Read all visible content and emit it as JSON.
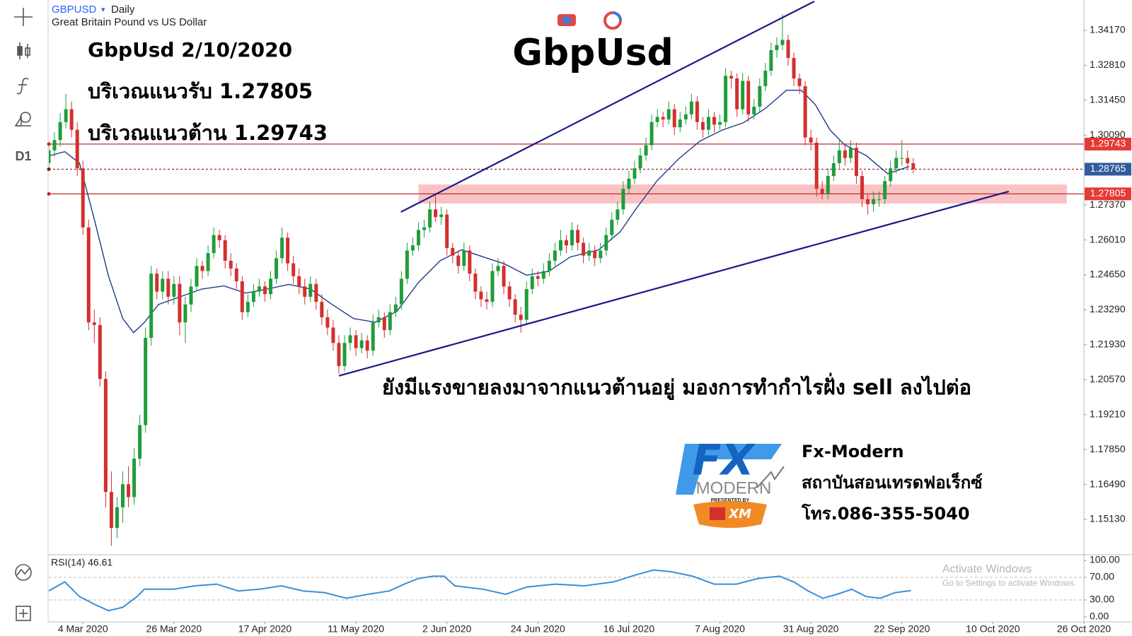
{
  "header": {
    "symbol": "GBPUSD",
    "timeframe": "Daily",
    "description": "Great Britain Pound vs US Dollar",
    "toolbar_timeframe": "D1"
  },
  "chart_data": {
    "type": "candlestick",
    "title": "GbpUsd",
    "annotations": [
      "GbpUsd 2/10/2020",
      "บริเวณแนวรับ 1.27805",
      "บริเวณแนวต้าน 1.29743",
      "ยังมีแรงขายลงมาจากแนวต้านอยู่ มองการทำกำไรฝั่ง sell ลงไปต่อ"
    ],
    "xlim": [
      0,
      182
    ],
    "xticks": [
      {
        "value": 6,
        "label": "4 Mar 2020"
      },
      {
        "value": 22,
        "label": "26 Mar 2020"
      },
      {
        "value": 38,
        "label": "17 Apr 2020"
      },
      {
        "value": 54,
        "label": "11 May 2020"
      },
      {
        "value": 70,
        "label": "2 Jun 2020"
      },
      {
        "value": 86,
        "label": "24 Jun 2020"
      },
      {
        "value": 102,
        "label": "16 Jul 2020"
      },
      {
        "value": 118,
        "label": "7 Aug 2020"
      },
      {
        "value": 134,
        "label": "31 Aug 2020"
      },
      {
        "value": 150,
        "label": "22 Sep 2020"
      },
      {
        "value": 166,
        "label": "10 Oct 2020"
      },
      {
        "value": 182,
        "label": "26 Oct 2020"
      }
    ],
    "ylim": [
      1.13755,
      1.35353
    ],
    "yticks": [
      {
        "value": 1.3417,
        "label": "1.34170"
      },
      {
        "value": 1.3281,
        "label": "1.32810"
      },
      {
        "value": 1.3145,
        "label": "1.31450"
      },
      {
        "value": 1.3009,
        "label": "1.30090"
      },
      {
        "value": 1.2737,
        "label": "1.27370"
      },
      {
        "value": 1.2601,
        "label": "1.26010"
      },
      {
        "value": 1.2465,
        "label": "1.24650"
      },
      {
        "value": 1.2329,
        "label": "1.23290"
      },
      {
        "value": 1.2193,
        "label": "1.21930"
      },
      {
        "value": 1.2057,
        "label": "1.20570"
      },
      {
        "value": 1.1921,
        "label": "1.19210"
      },
      {
        "value": 1.1785,
        "label": "1.17850"
      },
      {
        "value": 1.1649,
        "label": "1.16490"
      },
      {
        "value": 1.1513,
        "label": "1.15130"
      }
    ],
    "up_color": "#1f9d3a",
    "down_color": "#d32f2f",
    "candles": [
      [
        1.29,
        1.2985,
        1.287,
        1.295
      ],
      [
        1.295,
        1.302,
        1.2925,
        1.299
      ],
      [
        1.299,
        1.3095,
        1.2965,
        1.306
      ],
      [
        1.306,
        1.317,
        1.3035,
        1.311
      ],
      [
        1.311,
        1.314,
        1.3,
        1.303
      ],
      [
        1.303,
        1.306,
        1.285,
        1.288
      ],
      [
        1.288,
        1.291,
        1.262,
        1.265
      ],
      [
        1.265,
        1.268,
        1.225,
        1.228
      ],
      [
        1.228,
        1.233,
        1.22,
        1.227
      ],
      [
        1.227,
        1.23,
        1.203,
        1.206
      ],
      [
        1.206,
        1.209,
        1.156,
        1.162
      ],
      [
        1.162,
        1.17,
        1.141,
        1.148
      ],
      [
        1.148,
        1.16,
        1.144,
        1.156
      ],
      [
        1.156,
        1.17,
        1.15,
        1.165
      ],
      [
        1.165,
        1.172,
        1.156,
        1.16
      ],
      [
        1.16,
        1.179,
        1.157,
        1.175
      ],
      [
        1.175,
        1.192,
        1.172,
        1.188
      ],
      [
        1.188,
        1.226,
        1.185,
        1.222
      ],
      [
        1.222,
        1.25,
        1.219,
        1.247
      ],
      [
        1.247,
        1.249,
        1.237,
        1.24
      ],
      [
        1.24,
        1.248,
        1.237,
        1.245
      ],
      [
        1.245,
        1.248,
        1.235,
        1.238
      ],
      [
        1.238,
        1.246,
        1.235,
        1.243
      ],
      [
        1.243,
        1.246,
        1.223,
        1.228
      ],
      [
        1.228,
        1.238,
        1.22,
        1.235
      ],
      [
        1.235,
        1.245,
        1.232,
        1.242
      ],
      [
        1.242,
        1.253,
        1.24,
        1.25
      ],
      [
        1.25,
        1.252,
        1.245,
        1.248
      ],
      [
        1.248,
        1.258,
        1.246,
        1.255
      ],
      [
        1.255,
        1.265,
        1.253,
        1.262
      ],
      [
        1.262,
        1.264,
        1.257,
        1.26
      ],
      [
        1.26,
        1.262,
        1.249,
        1.252
      ],
      [
        1.252,
        1.255,
        1.246,
        1.249
      ],
      [
        1.249,
        1.251,
        1.241,
        1.244
      ],
      [
        1.244,
        1.246,
        1.229,
        1.232
      ],
      [
        1.232,
        1.239,
        1.23,
        1.236
      ],
      [
        1.236,
        1.243,
        1.234,
        1.24
      ],
      [
        1.24,
        1.245,
        1.238,
        1.242
      ],
      [
        1.242,
        1.244,
        1.236,
        1.239
      ],
      [
        1.239,
        1.248,
        1.237,
        1.245
      ],
      [
        1.245,
        1.256,
        1.243,
        1.253
      ],
      [
        1.253,
        1.265,
        1.251,
        1.261
      ],
      [
        1.261,
        1.263,
        1.248,
        1.251
      ],
      [
        1.251,
        1.254,
        1.243,
        1.246
      ],
      [
        1.246,
        1.249,
        1.239,
        1.242
      ],
      [
        1.242,
        1.245,
        1.235,
        1.238
      ],
      [
        1.238,
        1.246,
        1.236,
        1.243
      ],
      [
        1.243,
        1.245,
        1.233,
        1.236
      ],
      [
        1.236,
        1.239,
        1.227,
        1.23
      ],
      [
        1.23,
        1.233,
        1.223,
        1.226
      ],
      [
        1.226,
        1.229,
        1.217,
        1.22
      ],
      [
        1.22,
        1.223,
        1.208,
        1.211
      ],
      [
        1.211,
        1.223,
        1.209,
        1.22
      ],
      [
        1.22,
        1.226,
        1.217,
        1.223
      ],
      [
        1.223,
        1.225,
        1.215,
        1.218
      ],
      [
        1.218,
        1.224,
        1.216,
        1.221
      ],
      [
        1.221,
        1.223,
        1.214,
        1.217
      ],
      [
        1.217,
        1.231,
        1.215,
        1.228
      ],
      [
        1.228,
        1.233,
        1.226,
        1.23
      ],
      [
        1.23,
        1.232,
        1.222,
        1.225
      ],
      [
        1.225,
        1.235,
        1.223,
        1.232
      ],
      [
        1.232,
        1.238,
        1.23,
        1.235
      ],
      [
        1.235,
        1.248,
        1.233,
        1.245
      ],
      [
        1.245,
        1.259,
        1.243,
        1.256
      ],
      [
        1.256,
        1.261,
        1.254,
        1.258
      ],
      [
        1.258,
        1.267,
        1.256,
        1.264
      ],
      [
        1.264,
        1.268,
        1.261,
        1.265
      ],
      [
        1.265,
        1.275,
        1.263,
        1.272
      ],
      [
        1.272,
        1.278,
        1.267,
        1.269
      ],
      [
        1.269,
        1.273,
        1.266,
        1.27
      ],
      [
        1.27,
        1.272,
        1.254,
        1.257
      ],
      [
        1.257,
        1.259,
        1.251,
        1.254
      ],
      [
        1.254,
        1.256,
        1.247,
        1.25
      ],
      [
        1.25,
        1.259,
        1.248,
        1.256
      ],
      [
        1.256,
        1.258,
        1.244,
        1.247
      ],
      [
        1.247,
        1.249,
        1.237,
        1.24
      ],
      [
        1.24,
        1.242,
        1.234,
        1.237
      ],
      [
        1.237,
        1.24,
        1.233,
        1.236
      ],
      [
        1.236,
        1.251,
        1.234,
        1.248
      ],
      [
        1.248,
        1.253,
        1.246,
        1.25
      ],
      [
        1.25,
        1.252,
        1.239,
        1.242
      ],
      [
        1.242,
        1.244,
        1.234,
        1.237
      ],
      [
        1.237,
        1.239,
        1.228,
        1.231
      ],
      [
        1.231,
        1.234,
        1.224,
        1.229
      ],
      [
        1.229,
        1.244,
        1.227,
        1.241
      ],
      [
        1.241,
        1.249,
        1.239,
        1.246
      ],
      [
        1.246,
        1.248,
        1.242,
        1.245
      ],
      [
        1.245,
        1.251,
        1.243,
        1.248
      ],
      [
        1.248,
        1.255,
        1.246,
        1.252
      ],
      [
        1.252,
        1.259,
        1.25,
        1.256
      ],
      [
        1.256,
        1.264,
        1.254,
        1.26
      ],
      [
        1.26,
        1.262,
        1.255,
        1.258
      ],
      [
        1.258,
        1.267,
        1.256,
        1.264
      ],
      [
        1.264,
        1.266,
        1.256,
        1.259
      ],
      [
        1.259,
        1.261,
        1.251,
        1.254
      ],
      [
        1.254,
        1.259,
        1.252,
        1.256
      ],
      [
        1.256,
        1.258,
        1.25,
        1.253
      ],
      [
        1.253,
        1.259,
        1.251,
        1.256
      ],
      [
        1.256,
        1.265,
        1.254,
        1.262
      ],
      [
        1.262,
        1.271,
        1.26,
        1.268
      ],
      [
        1.268,
        1.275,
        1.266,
        1.272
      ],
      [
        1.272,
        1.283,
        1.27,
        1.28
      ],
      [
        1.28,
        1.287,
        1.278,
        1.284
      ],
      [
        1.284,
        1.291,
        1.282,
        1.288
      ],
      [
        1.288,
        1.296,
        1.286,
        1.293
      ],
      [
        1.293,
        1.3,
        1.291,
        1.297
      ],
      [
        1.297,
        1.309,
        1.295,
        1.306
      ],
      [
        1.306,
        1.311,
        1.304,
        1.308
      ],
      [
        1.308,
        1.31,
        1.304,
        1.307
      ],
      [
        1.307,
        1.314,
        1.305,
        1.311
      ],
      [
        1.311,
        1.313,
        1.301,
        1.304
      ],
      [
        1.304,
        1.31,
        1.302,
        1.307
      ],
      [
        1.307,
        1.312,
        1.305,
        1.309
      ],
      [
        1.309,
        1.317,
        1.307,
        1.314
      ],
      [
        1.314,
        1.316,
        1.303,
        1.306
      ],
      [
        1.306,
        1.308,
        1.3,
        1.303
      ],
      [
        1.303,
        1.311,
        1.301,
        1.308
      ],
      [
        1.308,
        1.31,
        1.302,
        1.305
      ],
      [
        1.305,
        1.309,
        1.303,
        1.306
      ],
      [
        1.306,
        1.327,
        1.304,
        1.324
      ],
      [
        1.324,
        1.326,
        1.319,
        1.323
      ],
      [
        1.323,
        1.325,
        1.308,
        1.311
      ],
      [
        1.311,
        1.325,
        1.309,
        1.322
      ],
      [
        1.322,
        1.324,
        1.306,
        1.309
      ],
      [
        1.309,
        1.315,
        1.307,
        1.312
      ],
      [
        1.312,
        1.323,
        1.31,
        1.32
      ],
      [
        1.32,
        1.329,
        1.318,
        1.326
      ],
      [
        1.326,
        1.337,
        1.324,
        1.334
      ],
      [
        1.334,
        1.339,
        1.331,
        1.336
      ],
      [
        1.336,
        1.348,
        1.334,
        1.338
      ],
      [
        1.338,
        1.34,
        1.328,
        1.331
      ],
      [
        1.331,
        1.333,
        1.32,
        1.323
      ],
      [
        1.323,
        1.325,
        1.317,
        1.32
      ],
      [
        1.32,
        1.322,
        1.297,
        1.3
      ],
      [
        1.3,
        1.303,
        1.295,
        1.298
      ],
      [
        1.298,
        1.3,
        1.277,
        1.28
      ],
      [
        1.28,
        1.283,
        1.276,
        1.278
      ],
      [
        1.278,
        1.288,
        1.276,
        1.285
      ],
      [
        1.285,
        1.293,
        1.283,
        1.29
      ],
      [
        1.29,
        1.299,
        1.288,
        1.295
      ],
      [
        1.295,
        1.297,
        1.289,
        1.292
      ],
      [
        1.292,
        1.299,
        1.29,
        1.296
      ],
      [
        1.296,
        1.298,
        1.282,
        1.285
      ],
      [
        1.285,
        1.287,
        1.273,
        1.276
      ],
      [
        1.276,
        1.278,
        1.27,
        1.274
      ],
      [
        1.274,
        1.279,
        1.271,
        1.276
      ],
      [
        1.276,
        1.279,
        1.273,
        1.276
      ],
      [
        1.276,
        1.285,
        1.274,
        1.283
      ],
      [
        1.283,
        1.291,
        1.281,
        1.288
      ],
      [
        1.288,
        1.295,
        1.286,
        1.292
      ],
      [
        1.292,
        1.299,
        1.289,
        1.292
      ],
      [
        1.292,
        1.295,
        1.288,
        1.29
      ],
      [
        1.29,
        1.292,
        1.286,
        1.28765
      ]
    ],
    "moving_average": {
      "color": "#1e3a8a",
      "x": [
        0.3,
        2.8,
        5.4,
        7.9,
        10.5,
        13,
        14.9,
        16.8,
        19.3,
        23.1,
        26.9,
        30.8,
        34.6,
        38.4,
        42.2,
        46,
        49.8,
        53.6,
        57.4,
        61.2,
        65,
        68.8,
        72.6,
        76.4,
        80.2,
        84,
        87.9,
        91.7,
        96.7,
        100.5,
        103.1,
        106.9,
        110.7,
        114.5,
        118.3,
        122.1,
        126,
        129.7,
        132.3,
        134.8,
        137.4,
        139.9,
        143.7,
        147.5,
        151.3
      ],
      "values": [
        1.293,
        1.2945,
        1.29,
        1.269,
        1.246,
        1.2295,
        1.224,
        1.228,
        1.235,
        1.238,
        1.241,
        1.2422,
        1.2394,
        1.241,
        1.2428,
        1.241,
        1.235,
        1.2295,
        1.2281,
        1.2323,
        1.2436,
        1.252,
        1.2563,
        1.2535,
        1.2507,
        1.2464,
        1.2479,
        1.2535,
        1.2563,
        1.2634,
        1.2718,
        1.283,
        1.2916,
        1.2986,
        1.3028,
        1.3057,
        1.3113,
        1.3184,
        1.3184,
        1.3127,
        1.3028,
        1.2972,
        1.293,
        1.2859,
        1.2887
      ]
    },
    "levels": [
      {
        "value": 1.29743,
        "color": "#c62828",
        "style": "solid",
        "label_color": "#e53935"
      },
      {
        "value": 1.28765,
        "color": "#8b1a1a",
        "style": "dashed",
        "label_color": "#2f5b9a"
      },
      {
        "value": 1.27805,
        "color": "#c62828",
        "style": "solid",
        "label_color": "#e53935"
      }
    ],
    "zone": {
      "x": [
        65,
        179
      ],
      "y": [
        1.2743,
        1.2817
      ],
      "color": "#f8b4b4"
    },
    "trendlines": {
      "color": "#1a1a8c",
      "lines": [
        {
          "x": [
            61.9,
            134.6
          ],
          "y": [
            1.271,
            1.353
          ]
        },
        {
          "x": [
            51.0,
            168.8
          ],
          "y": [
            1.2072,
            1.279
          ]
        }
      ]
    },
    "rsi": {
      "title": "RSI(14) 46.61",
      "color": "#3b8ed8",
      "ylim": [
        -8.75,
        108.75
      ],
      "yticks": [
        {
          "value": 100,
          "label": "100.00"
        },
        {
          "value": 70,
          "label": "70.00"
        },
        {
          "value": 30,
          "label": "30.00"
        },
        {
          "value": 0,
          "label": "0.00"
        }
      ],
      "levels": [
        70,
        30
      ],
      "x": [
        0,
        2.8,
        5.4,
        7.9,
        10.5,
        13,
        15.5,
        16.8,
        21.9,
        25.7,
        29.5,
        33.3,
        37.1,
        40.9,
        44.7,
        48.5,
        52.3,
        56.1,
        59.9,
        62.5,
        65,
        67.6,
        69.5,
        71.4,
        76.4,
        80.3,
        84.1,
        89.1,
        94.2,
        99.3,
        103.1,
        106.3,
        109.4,
        113.2,
        117,
        120.9,
        124.7,
        128.5,
        131,
        133.5,
        136.1,
        138.6,
        141.2,
        143.7,
        146.2,
        148.8,
        151.6
      ],
      "values": [
        46,
        62,
        36,
        23,
        11,
        17,
        36,
        49,
        49,
        55,
        58,
        46,
        49,
        55,
        46,
        43,
        33,
        40,
        46,
        58,
        68,
        72,
        72,
        55,
        49,
        40,
        53,
        58,
        55,
        62,
        74,
        83,
        80,
        72,
        58,
        58,
        68,
        72,
        62,
        46,
        33,
        40,
        49,
        36,
        33,
        43,
        46.61
      ]
    }
  },
  "logo": {
    "mark": "FX",
    "word": "MODERN",
    "presented": "PRESENTED BY",
    "broker": "XM",
    "name": "Fx-Modern",
    "tagline": "สถาบันสอนเทรดฟอเร็กซ์",
    "phone": "โทร.086-355-5040"
  },
  "watermark": {
    "title": "Activate Windows",
    "subtitle": "Go to Settings to activate Windows."
  }
}
